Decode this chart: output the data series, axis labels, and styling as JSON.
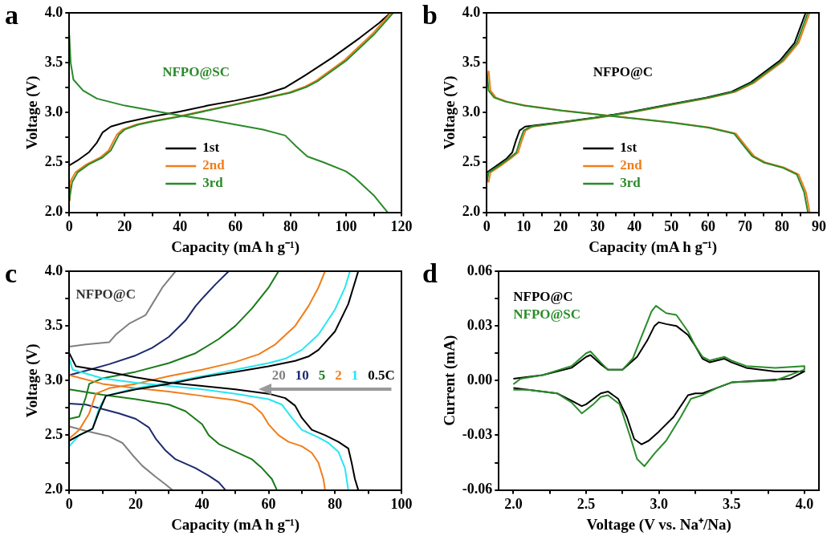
{
  "chart_data": [
    {
      "type": "line",
      "title": "a",
      "xlabel": "Capacity (mA h g⁻¹)",
      "ylabel": "Voltage (V)",
      "annotations": [
        "NFPO@SC"
      ],
      "legend": "bottom left",
      "xlim": [
        0,
        120
      ],
      "ylim": [
        2,
        4
      ],
      "xticks": [
        0,
        {
          "value": 10,
          "label": null
        },
        20,
        {
          "value": 30,
          "label": null
        },
        40,
        {
          "value": 50,
          "label": null
        },
        60,
        {
          "value": 70,
          "label": null
        },
        80,
        {
          "value": 90,
          "label": null
        },
        100,
        {
          "value": 110,
          "label": null
        },
        120
      ],
      "yticks": [
        {
          "value": 2,
          "label": "2.0"
        },
        {
          "value": 2.25,
          "label": null
        },
        {
          "value": 2.5,
          "label": "2.5"
        },
        {
          "value": 2.75,
          "label": null
        },
        {
          "value": 3,
          "label": "3.0"
        },
        {
          "value": 3.25,
          "label": null
        },
        {
          "value": 3.5,
          "label": "3.5"
        },
        {
          "value": 3.75,
          "label": null
        },
        {
          "value": 4,
          "label": "4.0"
        }
      ],
      "series": [
        {
          "name": "1st",
          "color": "#000000",
          "x": [
            0,
            3,
            7,
            10,
            12,
            15,
            20,
            30,
            40,
            50,
            60,
            70,
            78,
            85,
            95,
            105,
            112,
            116
          ],
          "values": [
            2.47,
            2.52,
            2.6,
            2.7,
            2.8,
            2.86,
            2.9,
            2.96,
            3.01,
            3.07,
            3.12,
            3.18,
            3.25,
            3.37,
            3.55,
            3.75,
            3.9,
            4.0
          ]
        },
        {
          "name": "2nd",
          "color": "#f07d1a",
          "x": [
            0,
            0.2,
            2.2,
            6.2,
            11.2,
            14.2,
            17.2,
            19.2,
            24.2,
            29.2,
            39.2,
            49.2,
            59.2,
            69.2,
            79.2,
            85.2,
            89.2,
            99.2,
            109.2,
            116.2
          ],
          "values": [
            2.12,
            2.3,
            2.4,
            2.48,
            2.55,
            2.62,
            2.78,
            2.83,
            2.88,
            2.91,
            2.96,
            3.02,
            3.08,
            3.14,
            3.2,
            3.26,
            3.32,
            3.52,
            3.78,
            4.0
          ]
        },
        {
          "name": "3rd",
          "color": "#2a8a2a",
          "x": [
            0,
            1,
            3,
            7,
            12,
            15,
            18,
            20,
            25,
            30,
            40,
            50,
            60,
            70,
            80,
            86,
            90,
            100,
            110,
            117,
            null,
            0,
            0.5,
            1.5,
            5,
            10,
            20,
            30,
            40,
            50,
            60,
            70,
            78,
            82,
            86,
            92,
            100,
            103,
            110,
            115
          ],
          "values": [
            2.12,
            2.3,
            2.4,
            2.48,
            2.55,
            2.62,
            2.78,
            2.83,
            2.88,
            2.91,
            2.96,
            3.02,
            3.08,
            3.14,
            3.2,
            3.26,
            3.32,
            3.52,
            3.78,
            4.0,
            null,
            3.78,
            3.5,
            3.33,
            3.22,
            3.14,
            3.07,
            3.02,
            2.97,
            2.93,
            2.88,
            2.83,
            2.77,
            2.66,
            2.56,
            2.5,
            2.41,
            2.35,
            2.17,
            2.0
          ]
        }
      ]
    },
    {
      "type": "line",
      "title": "b",
      "xlabel": "Capacity (mA h g⁻¹)",
      "ylabel": "Voltage (V)",
      "annotations": [
        "NFPO@C"
      ],
      "legend": "bottom left",
      "xlim": [
        0,
        90
      ],
      "ylim": [
        2,
        4
      ],
      "xticks": [
        0,
        {
          "value": 5,
          "label": null
        },
        10,
        {
          "value": 15,
          "label": null
        },
        20,
        {
          "value": 25,
          "label": null
        },
        30,
        {
          "value": 35,
          "label": null
        },
        40,
        {
          "value": 45,
          "label": null
        },
        50,
        {
          "value": 55,
          "label": null
        },
        60,
        {
          "value": 65,
          "label": null
        },
        70,
        {
          "value": 75,
          "label": null
        },
        80,
        {
          "value": 85,
          "label": null
        },
        90
      ],
      "yticks": [
        {
          "value": 2,
          "label": "2.0"
        },
        {
          "value": 2.25,
          "label": null
        },
        {
          "value": 2.5,
          "label": "2.5"
        },
        {
          "value": 2.75,
          "label": null
        },
        {
          "value": 3,
          "label": "3.0"
        },
        {
          "value": 3.25,
          "label": null
        },
        {
          "value": 3.5,
          "label": "3.5"
        },
        {
          "value": 3.75,
          "label": null
        },
        {
          "value": 4,
          "label": "4.0"
        }
      ],
      "series": [
        {
          "name": "1st",
          "color": "#000000",
          "x": [
            0,
            0,
            2.4,
            5.4,
            6.9,
            7.9,
            8.9,
            10.4,
            19.4,
            29.4,
            39.4,
            49.4,
            59.4,
            66.4,
            71.4,
            79.4,
            83.4,
            86.4
          ],
          "values": [
            2.3,
            2.4,
            2.46,
            2.54,
            2.6,
            2.72,
            2.82,
            2.86,
            2.9,
            2.95,
            3.01,
            3.08,
            3.15,
            3.21,
            3.3,
            3.52,
            3.7,
            4.0
          ]
        },
        {
          "name": "2nd",
          "color": "#f07d1a",
          "x": [
            0.5,
            1,
            3.5,
            6.5,
            8.5,
            9.5,
            10.5,
            12.5,
            20.5,
            30.5,
            40.5,
            50.5,
            60.5,
            67.5,
            72.5,
            80.5,
            84.5,
            87.5,
            null,
            0.5,
            1,
            2.5,
            5.5,
            10.5,
            20.5,
            30.5,
            40.5,
            50.5,
            60.5,
            67.5,
            70.5,
            72.5,
            75.5,
            80.5,
            84.5,
            86.5,
            87.5
          ],
          "values": [
            2.3,
            2.4,
            2.46,
            2.54,
            2.6,
            2.72,
            2.82,
            2.86,
            2.9,
            2.95,
            3.01,
            3.08,
            3.15,
            3.21,
            3.3,
            3.52,
            3.7,
            4.0,
            null,
            3.42,
            3.22,
            3.15,
            3.11,
            3.07,
            3.02,
            2.98,
            2.94,
            2.9,
            2.85,
            2.79,
            2.65,
            2.56,
            2.5,
            2.45,
            2.38,
            2.2,
            2.0
          ]
        },
        {
          "name": "3rd",
          "color": "#2a8a2a",
          "x": [
            0,
            0.5,
            3,
            6,
            8,
            9,
            10,
            12,
            20,
            30,
            40,
            50,
            60,
            67,
            72,
            80,
            84,
            87,
            null,
            0,
            0.5,
            2,
            5,
            10,
            20,
            30,
            40,
            50,
            60,
            67,
            70,
            72,
            75,
            80,
            84,
            86,
            87
          ],
          "values": [
            2.3,
            2.4,
            2.46,
            2.54,
            2.6,
            2.72,
            2.82,
            2.86,
            2.9,
            2.95,
            3.01,
            3.08,
            3.15,
            3.21,
            3.3,
            3.52,
            3.7,
            4.0,
            null,
            3.42,
            3.22,
            3.15,
            3.11,
            3.07,
            3.02,
            2.98,
            2.94,
            2.9,
            2.85,
            2.79,
            2.65,
            2.56,
            2.5,
            2.45,
            2.38,
            2.2,
            2.0
          ]
        }
      ]
    },
    {
      "type": "line",
      "title": "c",
      "xlabel": "Capacity (mA h g⁻¹)",
      "ylabel": "Voltage (V)",
      "annotations": [
        "NFPO@C"
      ],
      "legend": "right",
      "xlim": [
        0,
        100
      ],
      "ylim": [
        2,
        4
      ],
      "xticks": [
        0,
        {
          "value": 10,
          "label": null
        },
        20,
        {
          "value": 30,
          "label": null
        },
        40,
        {
          "value": 50,
          "label": null
        },
        60,
        {
          "value": 70,
          "label": null
        },
        80,
        {
          "value": 90,
          "label": null
        },
        100
      ],
      "yticks": [
        {
          "value": 2,
          "label": "2.0"
        },
        {
          "value": 2.25,
          "label": null
        },
        {
          "value": 2.5,
          "label": "2.5"
        },
        {
          "value": 2.75,
          "label": null
        },
        {
          "value": 3,
          "label": "3.0"
        },
        {
          "value": 3.25,
          "label": null
        },
        {
          "value": 3.5,
          "label": "3.5"
        },
        {
          "value": 3.75,
          "label": null
        },
        {
          "value": 4,
          "label": "4.0"
        }
      ],
      "series": [
        {
          "name": "20",
          "color": "#808080",
          "x": [
            0,
            5,
            12,
            14,
            18,
            23,
            25,
            28,
            32,
            null,
            0,
            5,
            12,
            16,
            19,
            22,
            26,
            29,
            31
          ],
          "values": [
            3.31,
            3.33,
            3.35,
            3.42,
            3.52,
            3.6,
            3.7,
            3.85,
            4.0,
            null,
            2.58,
            2.54,
            2.49,
            2.43,
            2.32,
            2.22,
            2.12,
            2.05,
            2.0
          ]
        },
        {
          "name": "10",
          "color": "#1c2a6e",
          "x": [
            0,
            5,
            12,
            20,
            25,
            30,
            35,
            38,
            40,
            44,
            48,
            null,
            0,
            5,
            10,
            15,
            20,
            24,
            26,
            29,
            32,
            38,
            42,
            45,
            47
          ],
          "values": [
            3.05,
            3.09,
            3.15,
            3.23,
            3.3,
            3.4,
            3.55,
            3.68,
            3.75,
            3.88,
            4.0,
            null,
            2.79,
            2.78,
            2.74,
            2.7,
            2.65,
            2.57,
            2.47,
            2.36,
            2.28,
            2.2,
            2.13,
            2.07,
            2.0
          ]
        },
        {
          "name": "5",
          "color": "#1a7a1a",
          "x": [
            0,
            3,
            5,
            6,
            10,
            20,
            30,
            38,
            45,
            50,
            55,
            60,
            63,
            null,
            0,
            10,
            20,
            30,
            35,
            40,
            42,
            45,
            50,
            55,
            58,
            61,
            62.5
          ],
          "values": [
            2.65,
            2.67,
            2.85,
            2.97,
            3.02,
            3.08,
            3.16,
            3.25,
            3.38,
            3.5,
            3.66,
            3.85,
            4.0,
            null,
            2.92,
            2.87,
            2.83,
            2.78,
            2.72,
            2.6,
            2.5,
            2.42,
            2.35,
            2.28,
            2.2,
            2.1,
            2.0
          ]
        },
        {
          "name": "2",
          "color": "#f07d1a",
          "x": [
            0,
            3,
            6,
            8,
            12,
            20,
            30,
            40,
            50,
            57,
            62,
            68,
            72,
            75,
            77,
            null,
            0,
            10,
            20,
            30,
            40,
            50,
            55,
            58,
            60,
            63,
            66,
            70,
            73,
            75,
            76.5,
            77
          ],
          "values": [
            2.47,
            2.55,
            2.7,
            2.88,
            2.93,
            2.97,
            3.04,
            3.1,
            3.17,
            3.24,
            3.33,
            3.5,
            3.68,
            3.85,
            4.0,
            null,
            3.05,
            2.97,
            2.93,
            2.9,
            2.86,
            2.82,
            2.78,
            2.7,
            2.6,
            2.5,
            2.44,
            2.4,
            2.34,
            2.25,
            2.1,
            2.0
          ]
        },
        {
          "name": "1",
          "color": "#26e6f2",
          "x": [
            0,
            3,
            7,
            9,
            11,
            20,
            30,
            40,
            50,
            60,
            65,
            70,
            75,
            80,
            83,
            84.5,
            null,
            0,
            1,
            10,
            20,
            30,
            40,
            50,
            60,
            64,
            67,
            70,
            75,
            78,
            81,
            83,
            84
          ],
          "values": [
            2.4,
            2.5,
            2.56,
            2.75,
            2.86,
            2.93,
            2.98,
            3.04,
            3.1,
            3.16,
            3.2,
            3.28,
            3.42,
            3.65,
            3.85,
            4.0,
            null,
            3.2,
            3.1,
            3.02,
            2.98,
            2.95,
            2.92,
            2.88,
            2.83,
            2.78,
            2.66,
            2.55,
            2.48,
            2.43,
            2.35,
            2.2,
            2.0
          ]
        },
        {
          "name": "0.5C",
          "color": "#000000",
          "x": [
            0,
            3,
            7,
            9,
            11,
            20,
            30,
            40,
            50,
            60,
            68,
            72,
            75,
            80,
            84,
            87,
            null,
            0,
            2,
            10,
            20,
            30,
            40,
            50,
            60,
            65,
            68,
            70,
            73,
            77,
            81,
            84,
            85,
            86,
            87
          ],
          "values": [
            2.45,
            2.5,
            2.56,
            2.72,
            2.86,
            2.92,
            2.97,
            3.03,
            3.08,
            3.13,
            3.18,
            3.22,
            3.28,
            3.45,
            3.7,
            4.0,
            null,
            3.25,
            3.13,
            3.09,
            3.03,
            2.98,
            2.95,
            2.92,
            2.88,
            2.84,
            2.77,
            2.66,
            2.55,
            2.5,
            2.44,
            2.38,
            2.25,
            2.1,
            2.0
          ]
        }
      ]
    },
    {
      "type": "line",
      "title": "d",
      "xlabel": "Voltage (V vs. Na⁺/Na)",
      "ylabel": "Current (mA)",
      "legend": "top left",
      "xlim": [
        1.9,
        4.1
      ],
      "ylim": [
        -0.06,
        0.06
      ],
      "xticks": [
        {
          "value": 2,
          "label": "2.0"
        },
        {
          "value": 2.25,
          "label": null
        },
        {
          "value": 2.5,
          "label": "2.5"
        },
        {
          "value": 2.75,
          "label": null
        },
        {
          "value": 3,
          "label": "3.0"
        },
        {
          "value": 3.25,
          "label": null
        },
        {
          "value": 3.5,
          "label": "3.5"
        },
        {
          "value": 3.75,
          "label": null
        },
        {
          "value": 4,
          "label": "4.0"
        }
      ],
      "yticks": [
        {
          "value": -0.06,
          "label": "-0.06"
        },
        {
          "value": -0.045,
          "label": null
        },
        {
          "value": -0.03,
          "label": "-0.03"
        },
        {
          "value": -0.015,
          "label": null
        },
        {
          "value": 0,
          "label": "0.00"
        },
        {
          "value": 0.015,
          "label": null
        },
        {
          "value": 0.03,
          "label": "0.03"
        },
        {
          "value": 0.045,
          "label": null
        },
        {
          "value": 0.06,
          "label": "0.06"
        }
      ],
      "series": [
        {
          "name": "NFPO@C",
          "color": "#000000",
          "x": [
            2.0,
            2.2,
            2.4,
            2.5,
            2.53,
            2.6,
            2.65,
            2.75,
            2.85,
            2.92,
            2.97,
            3.0,
            3.05,
            3.12,
            3.2,
            3.25,
            3.3,
            3.35,
            3.45,
            3.5,
            3.6,
            3.8,
            4.0,
            4.0,
            3.9,
            3.7,
            3.5,
            3.4,
            3.3,
            3.25,
            3.2,
            3.1,
            3.0,
            2.93,
            2.88,
            2.83,
            2.78,
            2.72,
            2.65,
            2.6,
            2.5,
            2.47,
            2.4,
            2.3,
            2.1,
            2.0
          ],
          "values": [
            0.001,
            0.003,
            0.007,
            0.013,
            0.014,
            0.009,
            0.006,
            0.006,
            0.013,
            0.022,
            0.03,
            0.032,
            0.031,
            0.03,
            0.025,
            0.019,
            0.012,
            0.01,
            0.012,
            0.01,
            0.007,
            0.005,
            0.005,
            0.005,
            0.001,
            0.0,
            -0.001,
            -0.004,
            -0.007,
            -0.007,
            -0.008,
            -0.02,
            -0.028,
            -0.033,
            -0.035,
            -0.032,
            -0.02,
            -0.01,
            -0.006,
            -0.007,
            -0.013,
            -0.014,
            -0.011,
            -0.007,
            -0.005,
            -0.004
          ]
        },
        {
          "name": "NFPO@SC",
          "color": "#2a8c2a",
          "x": [
            2.0,
            2.05,
            2.2,
            2.4,
            2.5,
            2.53,
            2.6,
            2.65,
            2.75,
            2.82,
            2.9,
            2.95,
            2.98,
            3.05,
            3.12,
            3.2,
            3.25,
            3.3,
            3.35,
            3.45,
            3.5,
            3.6,
            3.8,
            4.0,
            4.0,
            3.8,
            3.5,
            3.4,
            3.3,
            3.22,
            3.15,
            3.05,
            2.97,
            2.9,
            2.85,
            2.8,
            2.73,
            2.65,
            2.6,
            2.55,
            2.47,
            2.4,
            2.3,
            2.1,
            2.0
          ],
          "values": [
            -0.002,
            0.001,
            0.003,
            0.008,
            0.015,
            0.016,
            0.01,
            0.006,
            0.006,
            0.012,
            0.028,
            0.038,
            0.041,
            0.037,
            0.036,
            0.027,
            0.019,
            0.013,
            0.011,
            0.013,
            0.011,
            0.008,
            0.007,
            0.008,
            0.006,
            0.0,
            -0.001,
            -0.004,
            -0.008,
            -0.01,
            -0.02,
            -0.033,
            -0.04,
            -0.047,
            -0.043,
            -0.03,
            -0.013,
            -0.008,
            -0.009,
            -0.013,
            -0.018,
            -0.012,
            -0.007,
            -0.005,
            -0.005
          ]
        }
      ]
    }
  ]
}
